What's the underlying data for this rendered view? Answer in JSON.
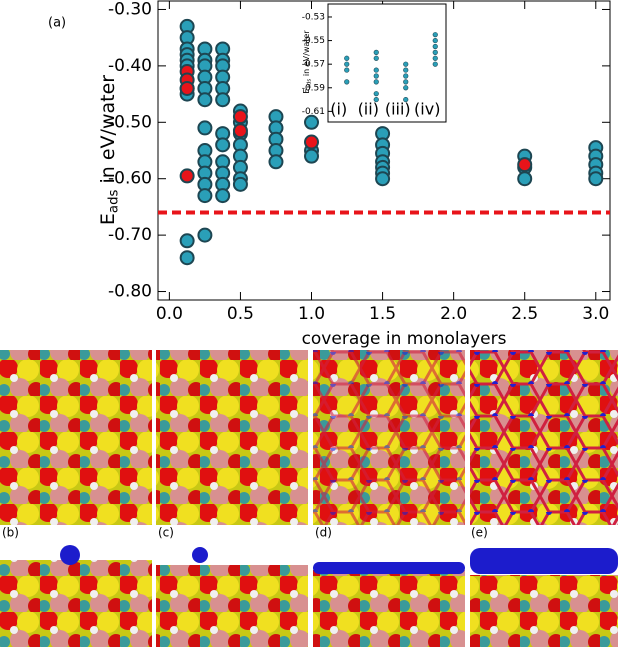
{
  "chart_data": [
    {
      "type": "scatter",
      "panel": "(a)",
      "xlabel": "coverage in monolayers",
      "ylabel": {
        "main": "E",
        "sub": "ads",
        "rest": " in eV/water"
      },
      "xlim": [
        -0.08,
        3.1
      ],
      "ylim": [
        -0.815,
        -0.285
      ],
      "xticks": [
        {
          "value": 0,
          "label": "0.0"
        },
        {
          "value": 0.5,
          "label": "0.5"
        },
        {
          "value": 1,
          "label": "1.0"
        },
        {
          "value": 1.5,
          "label": "1.5"
        },
        {
          "value": 2,
          "label": "2.0"
        },
        {
          "value": 2.5,
          "label": "2.5"
        },
        {
          "value": 3,
          "label": "3.0"
        }
      ],
      "yticks": [
        {
          "value": -0.3,
          "label": "-0.30"
        },
        {
          "value": -0.4,
          "label": "-0.40"
        },
        {
          "value": -0.5,
          "label": "-0.50"
        },
        {
          "value": -0.6,
          "label": "-0.60"
        },
        {
          "value": -0.7,
          "label": "-0.70"
        },
        {
          "value": -0.8,
          "label": "-0.80"
        }
      ],
      "hline": {
        "value": -0.66,
        "color": "#e8141a"
      },
      "series": [
        {
          "color": "#2a9fb8",
          "x": [
            0.125,
            0.125,
            0.125,
            0.125,
            0.125,
            0.125,
            0.125,
            0.125,
            0.125,
            0.125,
            0.25,
            0.25,
            0.25,
            0.25,
            0.25,
            0.25,
            0.25,
            0.25,
            0.25,
            0.25,
            0.25,
            0.25,
            0.25,
            0.375,
            0.375,
            0.375,
            0.375,
            0.375,
            0.375,
            0.375,
            0.375,
            0.375,
            0.375,
            0.375,
            0.375,
            0.5,
            0.5,
            0.5,
            0.5,
            0.5,
            0.5,
            0.5,
            0.5,
            0.75,
            0.75,
            0.75,
            0.75,
            0.75,
            1,
            1,
            1,
            1.5,
            1.5,
            1.5,
            1.5,
            1.5,
            1.5,
            1.5,
            2.5,
            2.5,
            2.5,
            3,
            3,
            3,
            3,
            3
          ],
          "values": [
            -0.33,
            -0.35,
            -0.37,
            -0.38,
            -0.39,
            -0.4,
            -0.44,
            -0.45,
            -0.71,
            -0.74,
            -0.37,
            -0.39,
            -0.4,
            -0.42,
            -0.44,
            -0.46,
            -0.51,
            -0.55,
            -0.57,
            -0.59,
            -0.61,
            -0.63,
            -0.7,
            -0.37,
            -0.39,
            -0.4,
            -0.42,
            -0.44,
            -0.46,
            -0.52,
            -0.54,
            -0.57,
            -0.59,
            -0.61,
            -0.63,
            -0.48,
            -0.5,
            -0.52,
            -0.54,
            -0.56,
            -0.58,
            -0.6,
            -0.61,
            -0.49,
            -0.51,
            -0.53,
            -0.55,
            -0.57,
            -0.5,
            -0.55,
            -0.56,
            -0.52,
            -0.54,
            -0.555,
            -0.57,
            -0.58,
            -0.59,
            -0.6,
            -0.56,
            -0.58,
            -0.6,
            -0.545,
            -0.56,
            -0.575,
            -0.59,
            -0.6
          ]
        },
        {
          "color": "#e8141a",
          "x": [
            0.125,
            0.125,
            0.125,
            0.125,
            0.5,
            0.5,
            1,
            2.5
          ],
          "values": [
            -0.41,
            -0.425,
            -0.44,
            -0.595,
            -0.49,
            -0.515,
            -0.535,
            -0.575
          ]
        }
      ]
    },
    {
      "type": "strip",
      "categories": [
        "(i)",
        "(ii)",
        "(iii)",
        "(iv)"
      ],
      "ylabel": {
        "main": "E",
        "sub": "ads",
        "rest": " in eV/water"
      },
      "ylim": [
        -0.619,
        -0.519
      ],
      "yticks": [
        {
          "value": -0.53,
          "label": "-0.53"
        },
        {
          "value": -0.55,
          "label": "-0.55"
        },
        {
          "value": -0.57,
          "label": "-0.57"
        },
        {
          "value": -0.59,
          "label": "-0.59"
        },
        {
          "value": -0.61,
          "label": "-0.61"
        }
      ],
      "series": [
        {
          "color": "#2a9fb8",
          "values": [
            [
              -0.565,
              -0.57,
              -0.575,
              -0.585
            ],
            [
              -0.56,
              -0.565,
              -0.575,
              -0.58,
              -0.585,
              -0.595,
              -0.6
            ],
            [
              -0.57,
              -0.575,
              -0.58,
              -0.585,
              -0.59,
              -0.6
            ],
            [
              -0.545,
              -0.55,
              -0.555,
              -0.56,
              -0.565,
              -0.57
            ]
          ]
        }
      ]
    }
  ],
  "panels": [
    "(b)",
    "(c)",
    "(d)",
    "(e)"
  ]
}
